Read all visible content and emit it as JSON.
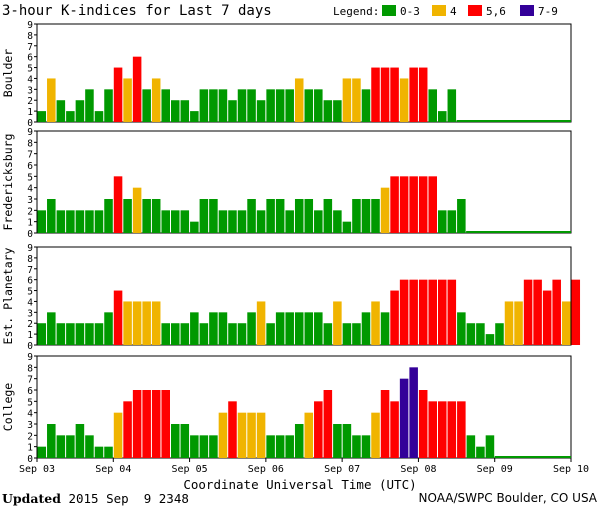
{
  "chart_data": {
    "type": "bar",
    "title": "3-hour K-indices for Last 7 days",
    "legend_label": "Legend:",
    "legend": [
      {
        "label": "0-3",
        "color": "#009900"
      },
      {
        "label": "4",
        "color": "#f0b400"
      },
      {
        "label": "5,6",
        "color": "#ff0000"
      },
      {
        "label": "7-9",
        "color": "#330099"
      }
    ],
    "ylim": [
      0,
      9
    ],
    "yticks": [
      "0",
      "1",
      "2",
      "3",
      "4",
      "5",
      "6",
      "7",
      "8",
      "9"
    ],
    "xlabel": "Coordinate Universal Time (UTC)",
    "x_ticks": [
      "Sep 03",
      "Sep 04",
      "Sep 05",
      "Sep 06",
      "Sep 07",
      "Sep 08",
      "Sep 09",
      "Sep 10"
    ],
    "panels": [
      {
        "name": "Boulder",
        "values": [
          1,
          4,
          2,
          1,
          2,
          3,
          1,
          3,
          5,
          4,
          6,
          3,
          4,
          3,
          2,
          2,
          1,
          3,
          3,
          3,
          2,
          3,
          3,
          2,
          3,
          3,
          3,
          4,
          3,
          3,
          2,
          2,
          4,
          4,
          3,
          5,
          5,
          5,
          4,
          5,
          5,
          3,
          1,
          3
        ]
      },
      {
        "name": "Fredericksburg",
        "values": [
          2,
          3,
          2,
          2,
          2,
          2,
          2,
          3,
          5,
          3,
          4,
          3,
          3,
          2,
          2,
          2,
          1,
          3,
          3,
          2,
          2,
          2,
          3,
          2,
          3,
          3,
          2,
          3,
          3,
          2,
          3,
          2,
          1,
          3,
          3,
          3,
          4,
          5,
          5,
          5,
          5,
          5,
          2,
          2,
          3
        ]
      },
      {
        "name": "Est. Planetary",
        "values": [
          2,
          3,
          2,
          2,
          2,
          2,
          2,
          3,
          5,
          4,
          4,
          4,
          4,
          2,
          2,
          2,
          3,
          2,
          3,
          3,
          2,
          2,
          3,
          4,
          2,
          3,
          3,
          3,
          3,
          3,
          2,
          4,
          2,
          2,
          3,
          4,
          3,
          5,
          6,
          6,
          6,
          6,
          6,
          6,
          3,
          2,
          2,
          1,
          2,
          4,
          4,
          6,
          6,
          5,
          6,
          4,
          6
        ]
      },
      {
        "name": "College",
        "values": [
          1,
          3,
          2,
          2,
          3,
          2,
          1,
          1,
          4,
          5,
          6,
          6,
          6,
          6,
          3,
          3,
          2,
          2,
          2,
          4,
          5,
          4,
          4,
          4,
          2,
          2,
          2,
          3,
          4,
          5,
          6,
          3,
          3,
          2,
          2,
          4,
          6,
          5,
          7,
          8,
          6,
          5,
          5,
          5,
          5,
          2,
          1,
          2
        ]
      }
    ]
  },
  "footer": {
    "updated_label": "Updated",
    "updated_value": " 2015 Sep  9 2348",
    "credit": "NOAA/SWPC Boulder, CO USA"
  }
}
